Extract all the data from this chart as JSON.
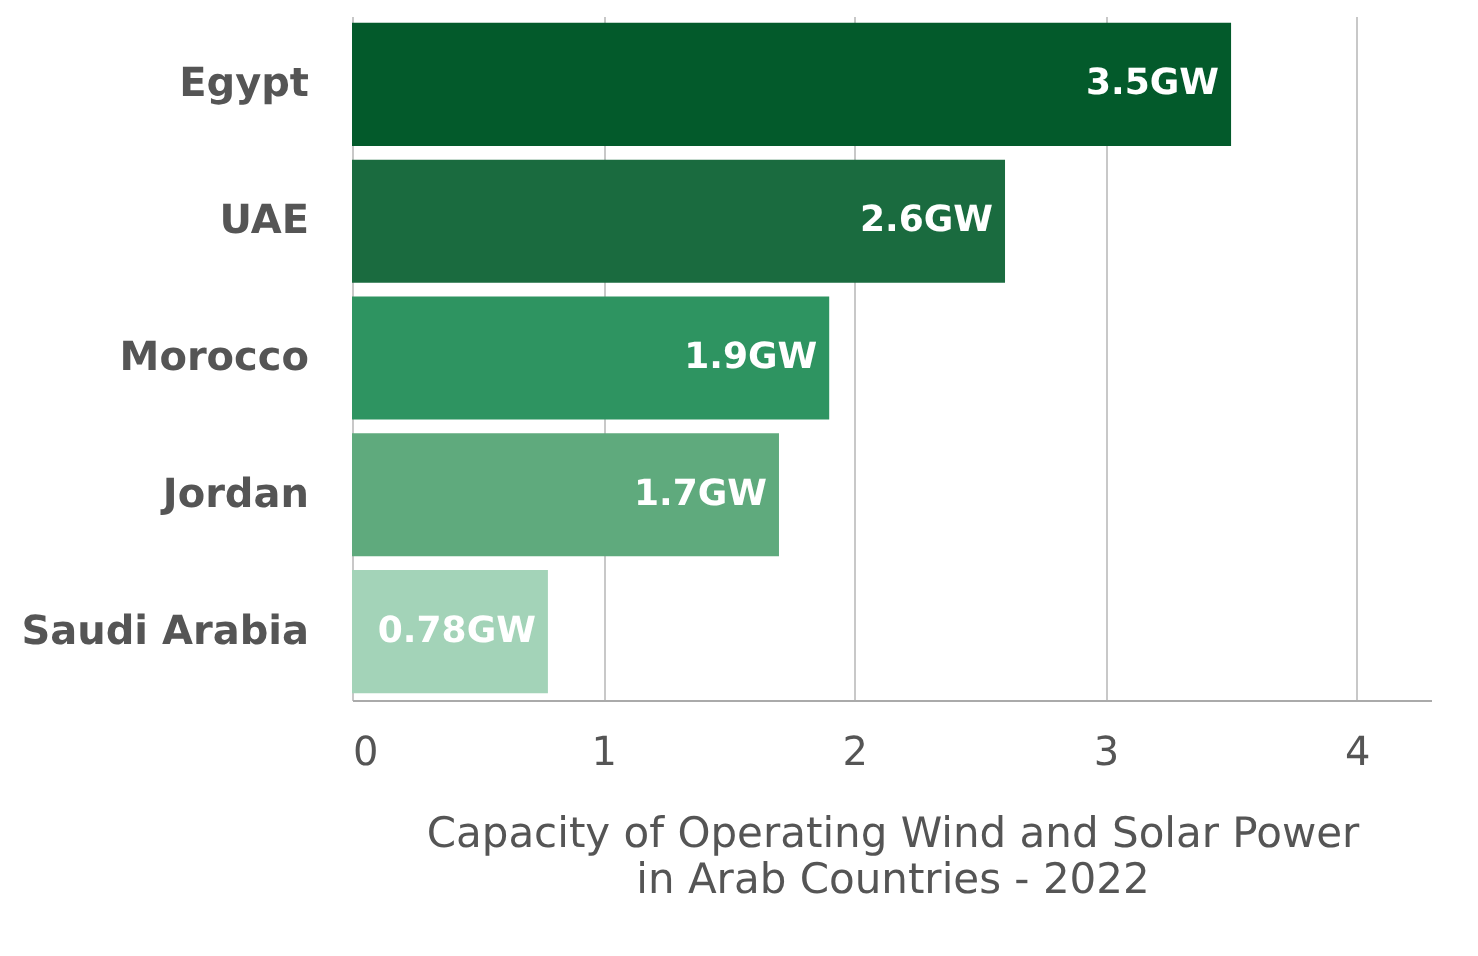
{
  "chart_data": {
    "type": "bar",
    "orientation": "horizontal",
    "xlabel": "Capacity of Operating Wind and Solar Power\nin Arab Countries - 2022",
    "categories": [
      "Egypt",
      "UAE",
      "Morocco",
      "Jordan",
      "Saudi Arabia"
    ],
    "values": [
      3.5,
      2.6,
      1.9,
      1.7,
      0.78
    ],
    "value_labels": [
      "3.5GW",
      "2.6GW",
      "1.9GW",
      "1.7GW",
      "0.78GW"
    ],
    "colors": [
      "#035a2b",
      "#1a6b3f",
      "#2e9461",
      "#5faa7d",
      "#a3d3b8"
    ],
    "xlim": [
      0,
      4.3
    ],
    "xticks": [
      0,
      1,
      2,
      3,
      4
    ],
    "grid": "x"
  }
}
